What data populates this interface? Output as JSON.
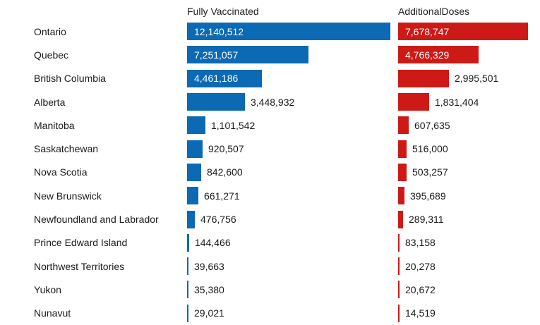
{
  "header": {
    "fully_vaccinated_label": "Fully Vaccinated",
    "additional_doses_label": "AdditionalDoses"
  },
  "colors": {
    "fully_vaccinated_bar": "#0c69b4",
    "additional_doses_bar": "#cd1a17",
    "inside_label_text": "#ffffff",
    "outside_label_text": "#1a1a1a",
    "background": "#ffffff"
  },
  "chart_data": {
    "type": "bar",
    "orientation": "horizontal",
    "title": "",
    "xlabel": "",
    "ylabel": "",
    "grid": false,
    "legend_position": "column-headers-top",
    "categories": [
      "Ontario",
      "Quebec",
      "British Columbia",
      "Alberta",
      "Manitoba",
      "Saskatchewan",
      "Nova Scotia",
      "New Brunswick",
      "Newfoundland and Labrador",
      "Prince Edward Island",
      "Northwest Territories",
      "Yukon",
      "Nunavut"
    ],
    "series": [
      {
        "name": "Fully Vaccinated",
        "color": "#0c69b4",
        "values": [
          12140512,
          7251057,
          4461186,
          3448932,
          1101542,
          920507,
          842600,
          661271,
          476756,
          144466,
          39663,
          35380,
          29021
        ],
        "value_labels": [
          "12,140,512",
          "7,251,057",
          "4,461,186",
          "3,448,932",
          "1,101,542",
          "920,507",
          "842,600",
          "661,271",
          "476,756",
          "144,466",
          "39,663",
          "35,380",
          "29,021"
        ]
      },
      {
        "name": "AdditionalDoses",
        "color": "#cd1a17",
        "values": [
          7678747,
          4766329,
          2995501,
          1831404,
          607635,
          516000,
          503257,
          395689,
          289311,
          83158,
          20278,
          20672,
          14519
        ],
        "value_labels": [
          "7,678,747",
          "4,766,329",
          "2,995,501",
          "1,831,404",
          "607,635",
          "516,000",
          "503,257",
          "395,689",
          "289,311",
          "83,158",
          "20,278",
          "20,672",
          "14,519"
        ]
      }
    ]
  }
}
